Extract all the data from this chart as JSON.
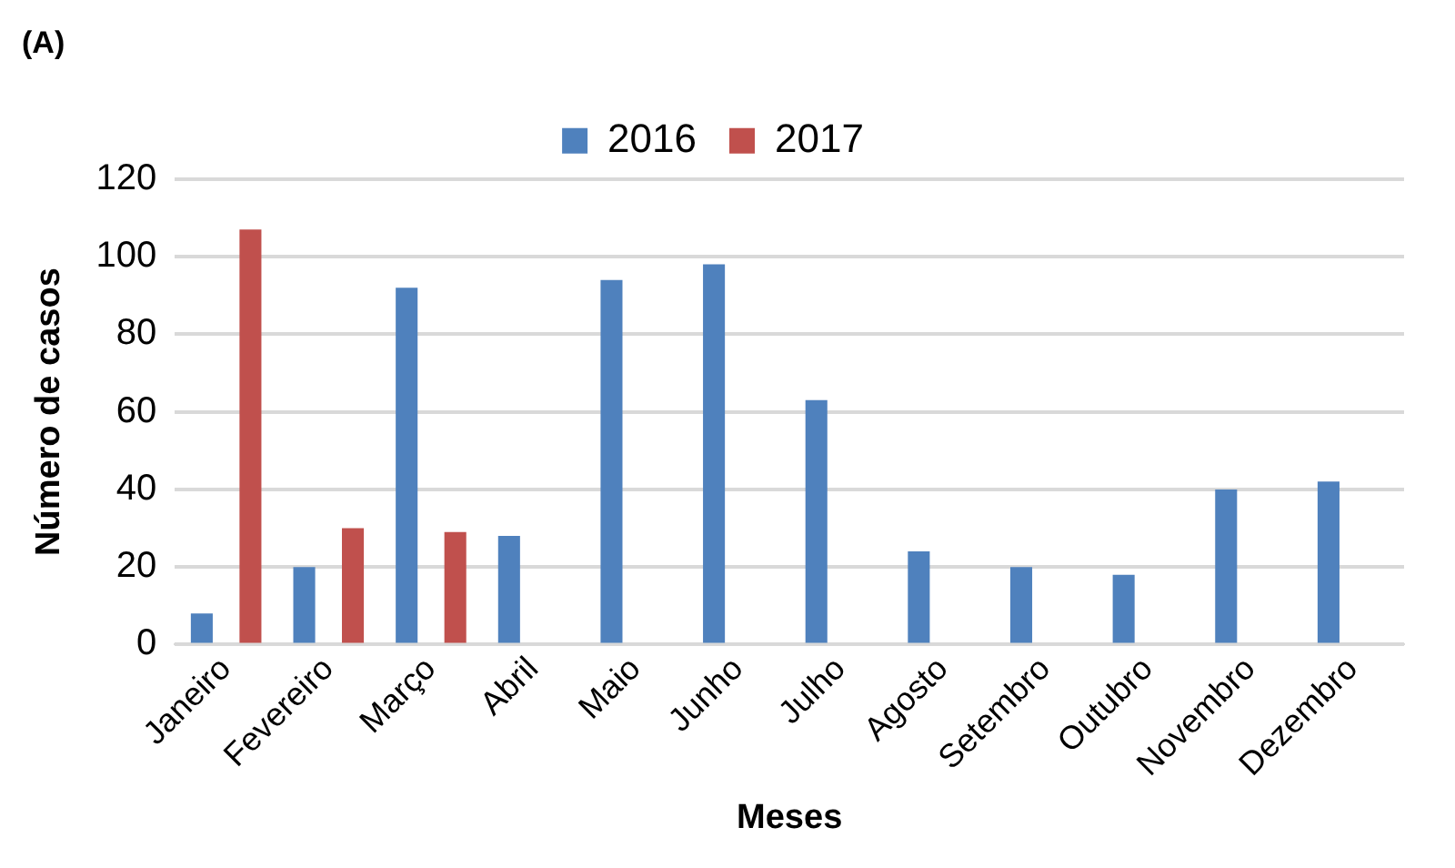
{
  "chart_data": {
    "type": "bar",
    "title": "(A)",
    "xlabel": "Meses",
    "ylabel": "Número de casos",
    "categories": [
      "Janeiro",
      "Fevereiro",
      "Março",
      "Abril",
      "Maio",
      "Junho",
      "Julho",
      "Agosto",
      "Setembro",
      "Outubro",
      "Novembro",
      "Dezembro"
    ],
    "series": [
      {
        "name": "2016",
        "color": "#4f81bd",
        "values": [
          8,
          20,
          92,
          28,
          94,
          98,
          63,
          24,
          20,
          18,
          40,
          42
        ]
      },
      {
        "name": "2017",
        "color": "#c0504d",
        "values": [
          107,
          30,
          29,
          null,
          null,
          null,
          null,
          null,
          null,
          null,
          null,
          null
        ]
      }
    ],
    "ylim": [
      0,
      120
    ],
    "yticks": [
      0,
      20,
      40,
      60,
      80,
      100,
      120
    ],
    "grid": "y",
    "legend": "top"
  }
}
